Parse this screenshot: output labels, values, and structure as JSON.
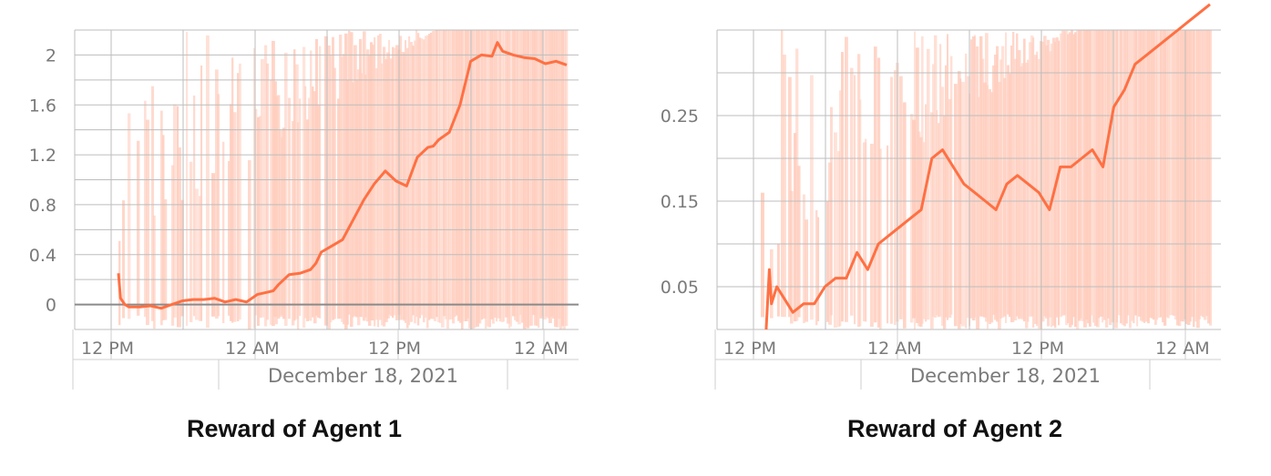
{
  "chart_data": [
    {
      "type": "line",
      "title": "Reward of Agent 1",
      "x_ticks": [
        "12 PM",
        "12 AM",
        "12 PM",
        "12 AM"
      ],
      "date_label": "December 18, 2021",
      "y_ticks": [
        "0",
        "0.4",
        "0.8",
        "1.2",
        "1.6",
        "2"
      ],
      "ylim": [
        -0.2,
        2.2
      ],
      "grid": true,
      "zero_line": true,
      "line_color": "#ff7043",
      "band_color": "#ffccbc",
      "series": [
        {
          "x": [
            0,
            0.2,
            0.6,
            1,
            2,
            3,
            4,
            5,
            6,
            7,
            8,
            9,
            10,
            11,
            11.5,
            12,
            13,
            14,
            14.5,
            15,
            16,
            17,
            18,
            18.5,
            19,
            20,
            21,
            22,
            23,
            24,
            24.5,
            25,
            26,
            27,
            28,
            29,
            29.5,
            30,
            31,
            32,
            33,
            34,
            35,
            35.5,
            36,
            37,
            38,
            39,
            40,
            41,
            42
          ],
          "values": [
            0.25,
            0.05,
            0.0,
            -0.02,
            -0.02,
            -0.01,
            -0.03,
            0.0,
            0.03,
            0.04,
            0.04,
            0.05,
            0.02,
            0.04,
            0.03,
            0.02,
            0.08,
            0.1,
            0.11,
            0.16,
            0.24,
            0.25,
            0.28,
            0.33,
            0.42,
            0.47,
            0.52,
            0.68,
            0.84,
            0.97,
            1.02,
            1.07,
            0.99,
            0.95,
            1.18,
            1.26,
            1.27,
            1.32,
            1.38,
            1.6,
            1.95,
            2.0,
            1.99,
            2.1,
            2.03,
            2.0,
            1.98,
            1.97,
            1.93,
            1.95,
            1.92
          ]
        }
      ]
    },
    {
      "type": "line",
      "title": "Reward of Agent 2",
      "x_ticks": [
        "12 PM",
        "12 AM",
        "12 PM",
        "12 AM"
      ],
      "date_label": "December 18, 2021",
      "y_ticks": [
        "0.05",
        "0.15",
        "0.25"
      ],
      "ylim": [
        0,
        0.35
      ],
      "grid": true,
      "zero_line": false,
      "line_color": "#ff7043",
      "band_color": "#ffccbc",
      "series": [
        {
          "x": [
            0.5,
            0.8,
            1,
            1.5,
            2,
            3,
            4,
            5,
            6,
            7,
            8,
            9,
            10,
            11,
            12,
            13,
            14,
            15,
            16,
            17,
            18,
            19,
            20,
            21,
            22,
            23,
            24,
            25,
            26,
            27,
            28,
            29,
            30,
            31,
            32,
            33,
            34,
            35,
            36,
            37,
            38,
            39,
            40,
            41,
            42
          ],
          "values": [
            0.0,
            0.07,
            0.03,
            0.05,
            0.04,
            0.02,
            0.03,
            0.03,
            0.05,
            0.06,
            0.06,
            0.09,
            0.07,
            0.1,
            0.11,
            0.12,
            0.13,
            0.14,
            0.2,
            0.21,
            0.19,
            0.17,
            0.16,
            0.15,
            0.14,
            0.17,
            0.18,
            0.17,
            0.16,
            0.14,
            0.19,
            0.19,
            0.2,
            0.21,
            0.19,
            0.26,
            0.28,
            0.31,
            0.32,
            0.33,
            0.34,
            0.35,
            0.36,
            0.37,
            0.38
          ]
        }
      ]
    }
  ]
}
